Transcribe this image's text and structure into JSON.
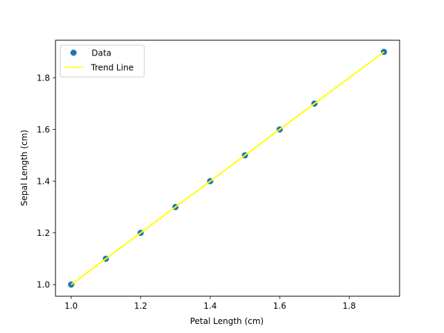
{
  "chart_data": {
    "type": "scatter",
    "title": "",
    "xlabel": "Petal Length (cm)",
    "ylabel": "Sepal Length (cm)",
    "xlim": [
      0.955,
      1.945
    ],
    "ylim": [
      0.955,
      1.945
    ],
    "x_ticks": [
      1.0,
      1.2,
      1.4,
      1.6,
      1.8
    ],
    "y_ticks": [
      1.0,
      1.2,
      1.4,
      1.6,
      1.8
    ],
    "x_tick_labels": [
      "1.0",
      "1.2",
      "1.4",
      "1.6",
      "1.8"
    ],
    "y_tick_labels": [
      "1.0",
      "1.2",
      "1.4",
      "1.6",
      "1.8"
    ],
    "grid": false,
    "legend": {
      "placement": "top-left"
    },
    "series": [
      {
        "name": "Data",
        "kind": "scatter",
        "color": "#1f77b4",
        "points": [
          {
            "x": 1.0,
            "y": 1.0
          },
          {
            "x": 1.1,
            "y": 1.1
          },
          {
            "x": 1.2,
            "y": 1.2
          },
          {
            "x": 1.3,
            "y": 1.3
          },
          {
            "x": 1.4,
            "y": 1.4
          },
          {
            "x": 1.5,
            "y": 1.5
          },
          {
            "x": 1.6,
            "y": 1.6
          },
          {
            "x": 1.7,
            "y": 1.7
          },
          {
            "x": 1.9,
            "y": 1.9
          }
        ]
      },
      {
        "name": "Trend Line",
        "kind": "line",
        "color": "#ffff00",
        "points": [
          {
            "x": 1.0,
            "y": 1.0
          },
          {
            "x": 1.1,
            "y": 1.1
          },
          {
            "x": 1.2,
            "y": 1.2
          },
          {
            "x": 1.3,
            "y": 1.3
          },
          {
            "x": 1.4,
            "y": 1.4
          },
          {
            "x": 1.5,
            "y": 1.5
          },
          {
            "x": 1.6,
            "y": 1.6
          },
          {
            "x": 1.7,
            "y": 1.7
          },
          {
            "x": 1.9,
            "y": 1.9
          }
        ]
      }
    ]
  }
}
